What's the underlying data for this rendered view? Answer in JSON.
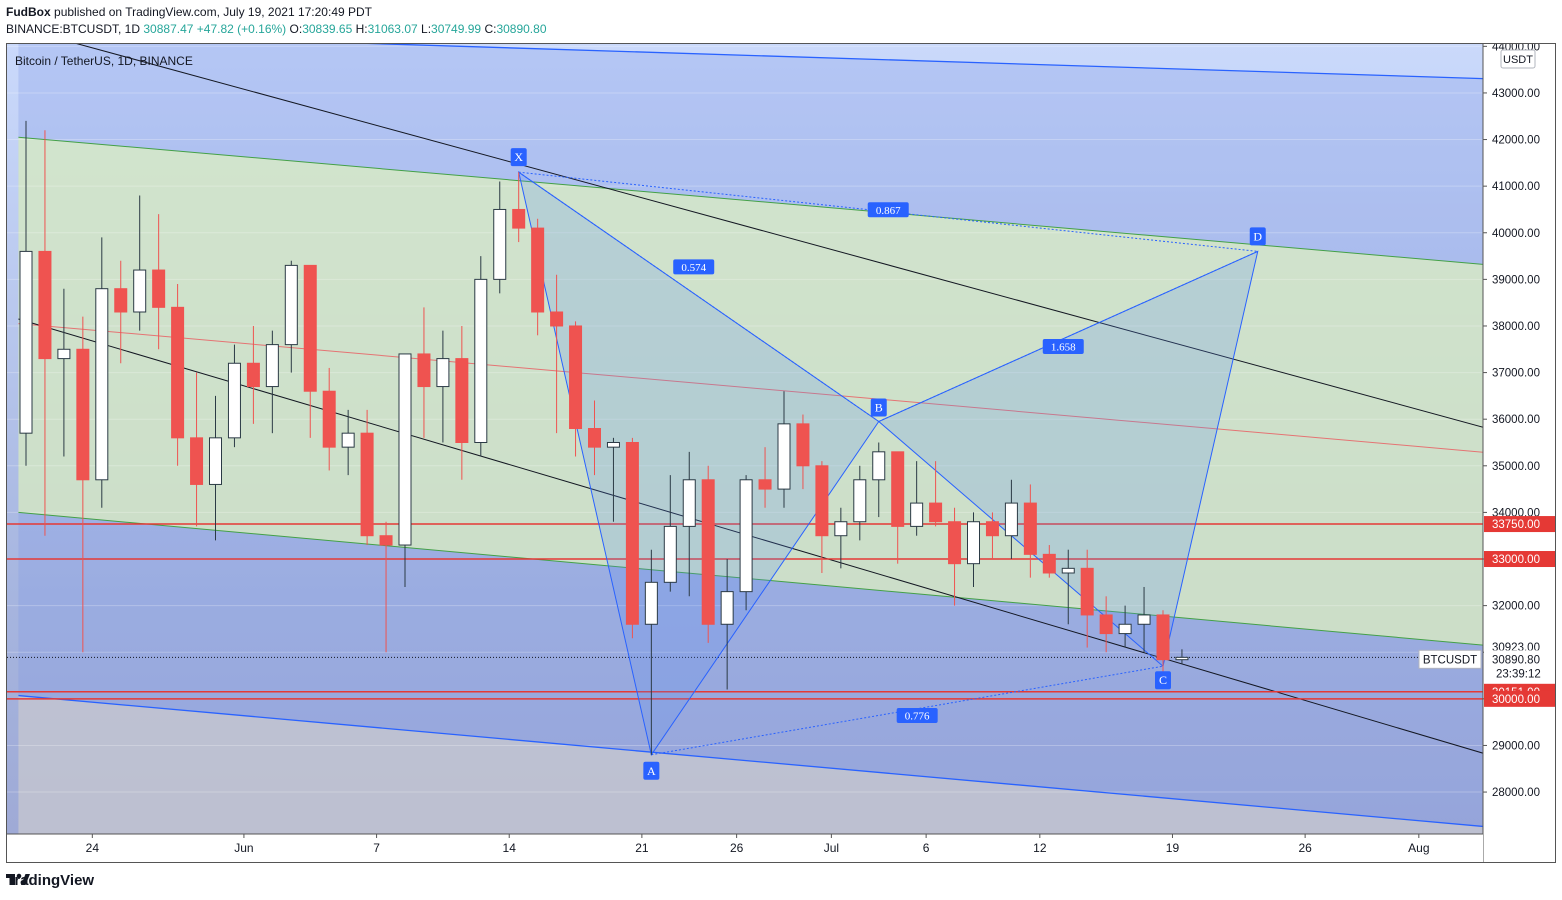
{
  "header": {
    "author": "FudBox",
    "published_text": "published on TradingView.com, July 19, 2021 17:20:49 PDT",
    "symbol": "BINANCE:BTCUSDT, 1D",
    "last": "30887.47",
    "change": "+47.82 (+0.16%)",
    "o_label": "O:",
    "o": "30839.65",
    "h_label": "H:",
    "h": "31063.07",
    "l_label": "L:",
    "l": "30749.99",
    "c_label": "C:",
    "c": "30890.80"
  },
  "legend_title": "Bitcoin / TetherUS, 1D, BINANCE",
  "currency": "USDT",
  "footer": {
    "brand": "TradingView"
  },
  "colors": {
    "up": "#ffffff",
    "down": "#ef5350",
    "up_border": "#2b3a45",
    "hline": "#e53935",
    "pattern": "#2962ff"
  },
  "chart_data": {
    "type": "candlestick",
    "ylim": [
      27100,
      44050
    ],
    "y_ticks": [
      28000,
      29000,
      30000,
      31000,
      32000,
      33000,
      34000,
      35000,
      36000,
      37000,
      38000,
      39000,
      40000,
      41000,
      42000,
      43000,
      44000
    ],
    "y_tick_labels": [
      "28000.00",
      "29000.00",
      "30000.00",
      "31000.00",
      "32000.00",
      "33000.00",
      "34000.00",
      "35000.00",
      "36000.00",
      "37000.00",
      "38000.00",
      "39000.00",
      "40000.00",
      "41000.00",
      "42000.00",
      "43000.00",
      "44000.00"
    ],
    "x_ticks": [
      {
        "label": "24",
        "i": 3.5
      },
      {
        "label": "Jun",
        "i": 11.5
      },
      {
        "label": "7",
        "i": 18.5
      },
      {
        "label": "14",
        "i": 25.5
      },
      {
        "label": "21",
        "i": 32.5
      },
      {
        "label": "26",
        "i": 37.5
      },
      {
        "label": "Jul",
        "i": 42.5
      },
      {
        "label": "6",
        "i": 47.5
      },
      {
        "label": "12",
        "i": 53.5
      },
      {
        "label": "19",
        "i": 60.5
      },
      {
        "label": "26",
        "i": 67.5
      },
      {
        "label": "Aug",
        "i": 73.5
      }
    ],
    "candles": [
      {
        "o": 35700,
        "h": 42400,
        "l": 35000,
        "c": 39600
      },
      {
        "o": 39600,
        "h": 42200,
        "l": 33500,
        "c": 37300
      },
      {
        "o": 37300,
        "h": 38800,
        "l": 35200,
        "c": 37500
      },
      {
        "o": 37500,
        "h": 38200,
        "l": 31000,
        "c": 34700
      },
      {
        "o": 34700,
        "h": 39900,
        "l": 34100,
        "c": 38800
      },
      {
        "o": 38800,
        "h": 39400,
        "l": 37200,
        "c": 38300
      },
      {
        "o": 38300,
        "h": 40800,
        "l": 37900,
        "c": 39200
      },
      {
        "o": 39200,
        "h": 40400,
        "l": 37500,
        "c": 38400
      },
      {
        "o": 38400,
        "h": 38900,
        "l": 35000,
        "c": 35600
      },
      {
        "o": 35600,
        "h": 37000,
        "l": 33700,
        "c": 34600
      },
      {
        "o": 34600,
        "h": 36500,
        "l": 33400,
        "c": 35600
      },
      {
        "o": 35600,
        "h": 37600,
        "l": 35400,
        "c": 37200
      },
      {
        "o": 37200,
        "h": 38000,
        "l": 35900,
        "c": 36700
      },
      {
        "o": 36700,
        "h": 37900,
        "l": 35700,
        "c": 37600
      },
      {
        "o": 37600,
        "h": 39400,
        "l": 37000,
        "c": 39300
      },
      {
        "o": 39300,
        "h": 39300,
        "l": 35600,
        "c": 36600
      },
      {
        "o": 36600,
        "h": 37100,
        "l": 34900,
        "c": 35400
      },
      {
        "o": 35400,
        "h": 36200,
        "l": 34800,
        "c": 35700
      },
      {
        "o": 35700,
        "h": 36200,
        "l": 33300,
        "c": 33500
      },
      {
        "o": 33500,
        "h": 33800,
        "l": 31000,
        "c": 33300
      },
      {
        "o": 33300,
        "h": 37400,
        "l": 32400,
        "c": 37400
      },
      {
        "o": 37400,
        "h": 38400,
        "l": 35600,
        "c": 36700
      },
      {
        "o": 36700,
        "h": 37900,
        "l": 35500,
        "c": 37300
      },
      {
        "o": 37300,
        "h": 38000,
        "l": 34700,
        "c": 35500
      },
      {
        "o": 35500,
        "h": 39500,
        "l": 35200,
        "c": 39000
      },
      {
        "o": 39000,
        "h": 41100,
        "l": 38700,
        "c": 40500
      },
      {
        "o": 40500,
        "h": 41300,
        "l": 39800,
        "c": 40100
      },
      {
        "o": 40100,
        "h": 40300,
        "l": 37800,
        "c": 38300
      },
      {
        "o": 38300,
        "h": 39100,
        "l": 35700,
        "c": 38000
      },
      {
        "o": 38000,
        "h": 38100,
        "l": 35200,
        "c": 35800
      },
      {
        "o": 35800,
        "h": 36400,
        "l": 34800,
        "c": 35400
      },
      {
        "o": 35400,
        "h": 35600,
        "l": 33800,
        "c": 35500
      },
      {
        "o": 35500,
        "h": 35600,
        "l": 31300,
        "c": 31600
      },
      {
        "o": 31600,
        "h": 33200,
        "l": 28800,
        "c": 32500
      },
      {
        "o": 32500,
        "h": 34800,
        "l": 32300,
        "c": 33700
      },
      {
        "o": 33700,
        "h": 35300,
        "l": 32200,
        "c": 34700
      },
      {
        "o": 34700,
        "h": 35000,
        "l": 31200,
        "c": 31600
      },
      {
        "o": 31600,
        "h": 33000,
        "l": 30200,
        "c": 32300
      },
      {
        "o": 32300,
        "h": 34800,
        "l": 31900,
        "c": 34700
      },
      {
        "o": 34700,
        "h": 35400,
        "l": 34100,
        "c": 34500
      },
      {
        "o": 34500,
        "h": 36600,
        "l": 34100,
        "c": 35900
      },
      {
        "o": 35900,
        "h": 36100,
        "l": 34500,
        "c": 35000
      },
      {
        "o": 35000,
        "h": 35100,
        "l": 32700,
        "c": 33500
      },
      {
        "o": 33500,
        "h": 34100,
        "l": 32800,
        "c": 33800
      },
      {
        "o": 33800,
        "h": 35000,
        "l": 33400,
        "c": 34700
      },
      {
        "o": 34700,
        "h": 35500,
        "l": 33900,
        "c": 35300
      },
      {
        "o": 35300,
        "h": 35300,
        "l": 32900,
        "c": 33700
      },
      {
        "o": 33700,
        "h": 35100,
        "l": 33500,
        "c": 34200
      },
      {
        "o": 34200,
        "h": 35100,
        "l": 33700,
        "c": 33800
      },
      {
        "o": 33800,
        "h": 34100,
        "l": 32000,
        "c": 32900
      },
      {
        "o": 32900,
        "h": 34000,
        "l": 32400,
        "c": 33800
      },
      {
        "o": 33800,
        "h": 34000,
        "l": 33000,
        "c": 33500
      },
      {
        "o": 33500,
        "h": 34700,
        "l": 33000,
        "c": 34200
      },
      {
        "o": 34200,
        "h": 34600,
        "l": 32600,
        "c": 33100
      },
      {
        "o": 33100,
        "h": 33300,
        "l": 32600,
        "c": 32700
      },
      {
        "o": 32700,
        "h": 33200,
        "l": 31600,
        "c": 32800
      },
      {
        "o": 32800,
        "h": 33200,
        "l": 31100,
        "c": 31800
      },
      {
        "o": 31800,
        "h": 32200,
        "l": 31000,
        "c": 31400
      },
      {
        "o": 31400,
        "h": 32000,
        "l": 31100,
        "c": 31600
      },
      {
        "o": 31600,
        "h": 32400,
        "l": 31000,
        "c": 31800
      },
      {
        "o": 31800,
        "h": 31900,
        "l": 30400,
        "c": 30840
      },
      {
        "o": 30840,
        "h": 31063,
        "l": 30750,
        "c": 30890
      }
    ],
    "hlines": [
      {
        "y": 33750,
        "label": "33750.00"
      },
      {
        "y": 33000,
        "label": "33000.00"
      },
      {
        "y": 30151,
        "label": "30151.00"
      },
      {
        "y": 30000,
        "label": "30000.00"
      }
    ],
    "price_labels": [
      {
        "y": 30923,
        "label": "30923.00"
      }
    ],
    "last_price": {
      "symbol": "BTCUSDT",
      "value": "30890.80",
      "countdown": "23:39:12"
    },
    "pattern": {
      "points": [
        {
          "name": "X",
          "i": 26,
          "y": 41300
        },
        {
          "name": "A",
          "i": 33,
          "y": 28800
        },
        {
          "name": "B",
          "i": 45,
          "y": 35950
        },
        {
          "name": "C",
          "i": 60,
          "y": 30700
        },
        {
          "name": "D",
          "i": 65,
          "y": 39600
        }
      ],
      "ratios": [
        {
          "label": "0.574"
        },
        {
          "label": "0.867"
        },
        {
          "label": "1.658"
        },
        {
          "label": "0.776"
        }
      ]
    }
  }
}
